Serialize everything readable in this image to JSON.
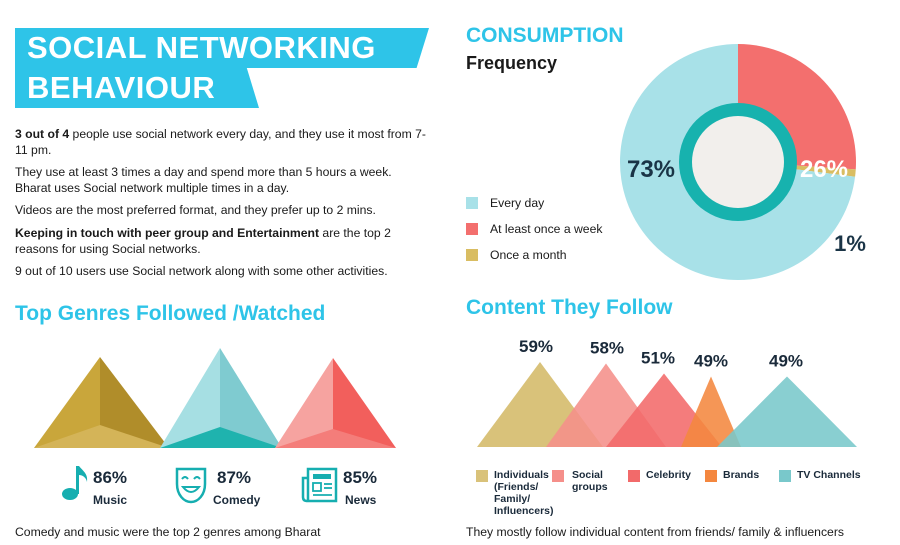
{
  "header": {
    "line1": "SOCIAL NETWORKING",
    "line2": "BEHAVIOUR"
  },
  "paragraphs": [
    {
      "bold": "3 out of 4",
      "text": " people use social network every day, and they use it most from 7-11 pm."
    },
    {
      "bold": "",
      "text": "They use at least 3 times a day and spend more than 5 hours a week. Bharat uses Social network multiple times in a day."
    },
    {
      "bold": "",
      "text": "Videos are the most preferred format, and they prefer up to 2 mins."
    },
    {
      "bold": "Keeping in touch with peer group and Entertainment",
      "text": " are the top 2 reasons for using Social networks."
    },
    {
      "bold": "",
      "text": "9 out of 10 users use Social network along with some other activities."
    }
  ],
  "consumption": {
    "title": "CONSUMPTION",
    "subtitle": "Frequency"
  },
  "genres": {
    "title": "Top Genres Followed /Watched",
    "caption": "Comedy and music were the top 2 genres among Bharat"
  },
  "content": {
    "title": "Content They Follow",
    "caption": "They mostly follow individual content from friends/ family & influencers"
  },
  "chart_data": [
    {
      "type": "pie",
      "title": "CONSUMPTION",
      "subtitle": "Frequency",
      "slices": [
        {
          "label": "Every day",
          "value": 73,
          "display": "73%",
          "color": "#a8e1e8"
        },
        {
          "label": "At least once a week",
          "value": 26,
          "display": "26%",
          "color": "#f36f6e"
        },
        {
          "label": "Once a month",
          "value": 1,
          "display": "1%",
          "color": "#d9bd62"
        }
      ],
      "legend_position": "left"
    },
    {
      "type": "bar",
      "title": "Top Genres Followed /Watched",
      "categories": [
        "Music",
        "Comedy",
        "News"
      ],
      "values": [
        86,
        87,
        85
      ],
      "display": [
        "86%",
        "87%",
        "85%"
      ],
      "icons": [
        "music-note-icon",
        "theater-mask-icon",
        "newspaper-icon"
      ],
      "colors": [
        "#c9a63b",
        "#7fd0d6",
        "#f36f6e"
      ]
    },
    {
      "type": "bar",
      "title": "Content They Follow",
      "categories": [
        "Individuals (Friends/ Family/ Influencers)",
        "Social groups",
        "Celebrity",
        "Brands",
        "TV Channels"
      ],
      "legend_lines": [
        [
          "Individuals",
          "(Friends/",
          "Family/",
          "Influencers)"
        ],
        [
          "Social",
          "groups"
        ],
        [
          "Celebrity"
        ],
        [
          "Brands"
        ],
        [
          "TV Channels"
        ]
      ],
      "values": [
        59,
        58,
        51,
        49,
        49
      ],
      "display": [
        "59%",
        "58%",
        "51%",
        "49%",
        "49%"
      ],
      "colors": [
        "#d9c27a",
        "#f58f8a",
        "#f26a6a",
        "#f4873f",
        "#79c8cb"
      ],
      "legend_position": "bottom"
    }
  ]
}
